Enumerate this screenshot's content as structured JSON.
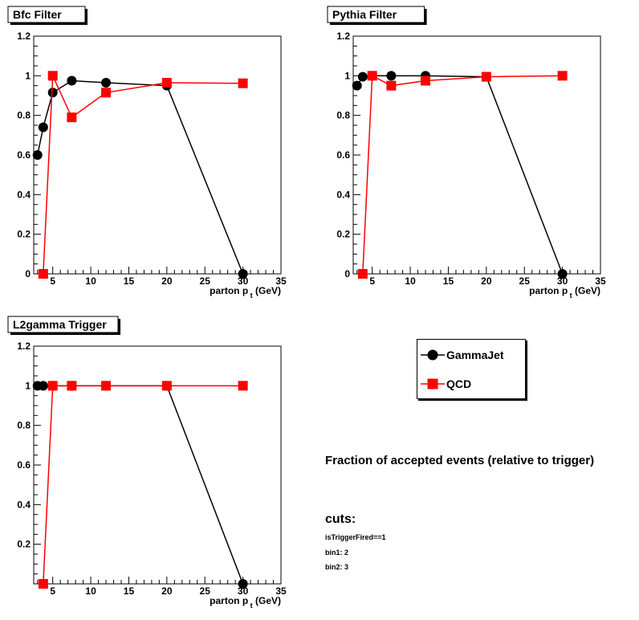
{
  "chart_data": [
    {
      "type": "line",
      "title": "Bfc Filter",
      "xlabel": "parton p_t (GeV)",
      "xlim": [
        2.5,
        35
      ],
      "ylim": [
        0,
        1.2
      ],
      "x_ticks": [
        "5",
        "10",
        "15",
        "20",
        "25",
        "30",
        "35"
      ],
      "y_ticks": [
        "0",
        "0.2",
        "0.4",
        "0.6",
        "0.8",
        "1",
        "1.2"
      ],
      "series": [
        {
          "name": "GammaJet",
          "color": "#000000",
          "marker": "circle",
          "x": [
            3,
            3.75,
            5,
            7.5,
            12,
            20,
            30
          ],
          "y": [
            0.6,
            0.74,
            0.915,
            0.975,
            0.965,
            0.95,
            0.0
          ]
        },
        {
          "name": "QCD",
          "color": "#ff0000",
          "marker": "square",
          "x": [
            3.75,
            5,
            7.5,
            12,
            20,
            30
          ],
          "y": [
            0.0,
            1.0,
            0.79,
            0.915,
            0.965,
            0.962
          ]
        }
      ]
    },
    {
      "type": "line",
      "title": "Pythia Filter",
      "xlabel": "parton p_t (GeV)",
      "xlim": [
        2.5,
        35
      ],
      "ylim": [
        0,
        1.2
      ],
      "x_ticks": [
        "5",
        "10",
        "15",
        "20",
        "25",
        "30",
        "35"
      ],
      "y_ticks": [
        "0",
        "0.2",
        "0.4",
        "0.6",
        "0.8",
        "1",
        "1.2"
      ],
      "series": [
        {
          "name": "GammaJet",
          "color": "#000000",
          "marker": "circle",
          "x": [
            3,
            3.75,
            5,
            7.5,
            12,
            20,
            30
          ],
          "y": [
            0.95,
            0.995,
            1.0,
            1.0,
            1.0,
            0.995,
            0.0
          ]
        },
        {
          "name": "QCD",
          "color": "#ff0000",
          "marker": "square",
          "x": [
            3.75,
            5,
            7.5,
            12,
            20,
            30
          ],
          "y": [
            0.0,
            1.0,
            0.95,
            0.975,
            0.995,
            1.0
          ]
        }
      ]
    },
    {
      "type": "line",
      "title": "L2gamma Trigger",
      "xlabel": "parton p_t (GeV)",
      "xlim": [
        2.5,
        35
      ],
      "ylim": [
        0,
        1.2
      ],
      "x_ticks": [
        "5",
        "10",
        "15",
        "20",
        "25",
        "30",
        "35"
      ],
      "y_ticks": [
        "0.2",
        "0.4",
        "0.6",
        "0.8",
        "1",
        "1.2"
      ],
      "series": [
        {
          "name": "GammaJet",
          "color": "#000000",
          "marker": "circle",
          "x": [
            3,
            3.75,
            5,
            7.5,
            12,
            20,
            30
          ],
          "y": [
            1.0,
            1.0,
            1.0,
            1.0,
            1.0,
            1.0,
            0.0
          ]
        },
        {
          "name": "QCD",
          "color": "#ff0000",
          "marker": "square",
          "x": [
            3.75,
            5,
            7.5,
            12,
            20,
            30
          ],
          "y": [
            0.0,
            1.0,
            1.0,
            1.0,
            1.0,
            1.0
          ]
        }
      ]
    }
  ],
  "legend": {
    "items": [
      {
        "label": "GammaJet",
        "color": "#000000",
        "marker": "circle"
      },
      {
        "label": "QCD",
        "color": "#ff0000",
        "marker": "square"
      }
    ]
  },
  "caption": "Fraction of accepted events (relative to trigger)",
  "cuts": {
    "title": "cuts:",
    "lines": [
      "isTriggerFired==1",
      "bin1: 2",
      "bin2: 3"
    ]
  }
}
